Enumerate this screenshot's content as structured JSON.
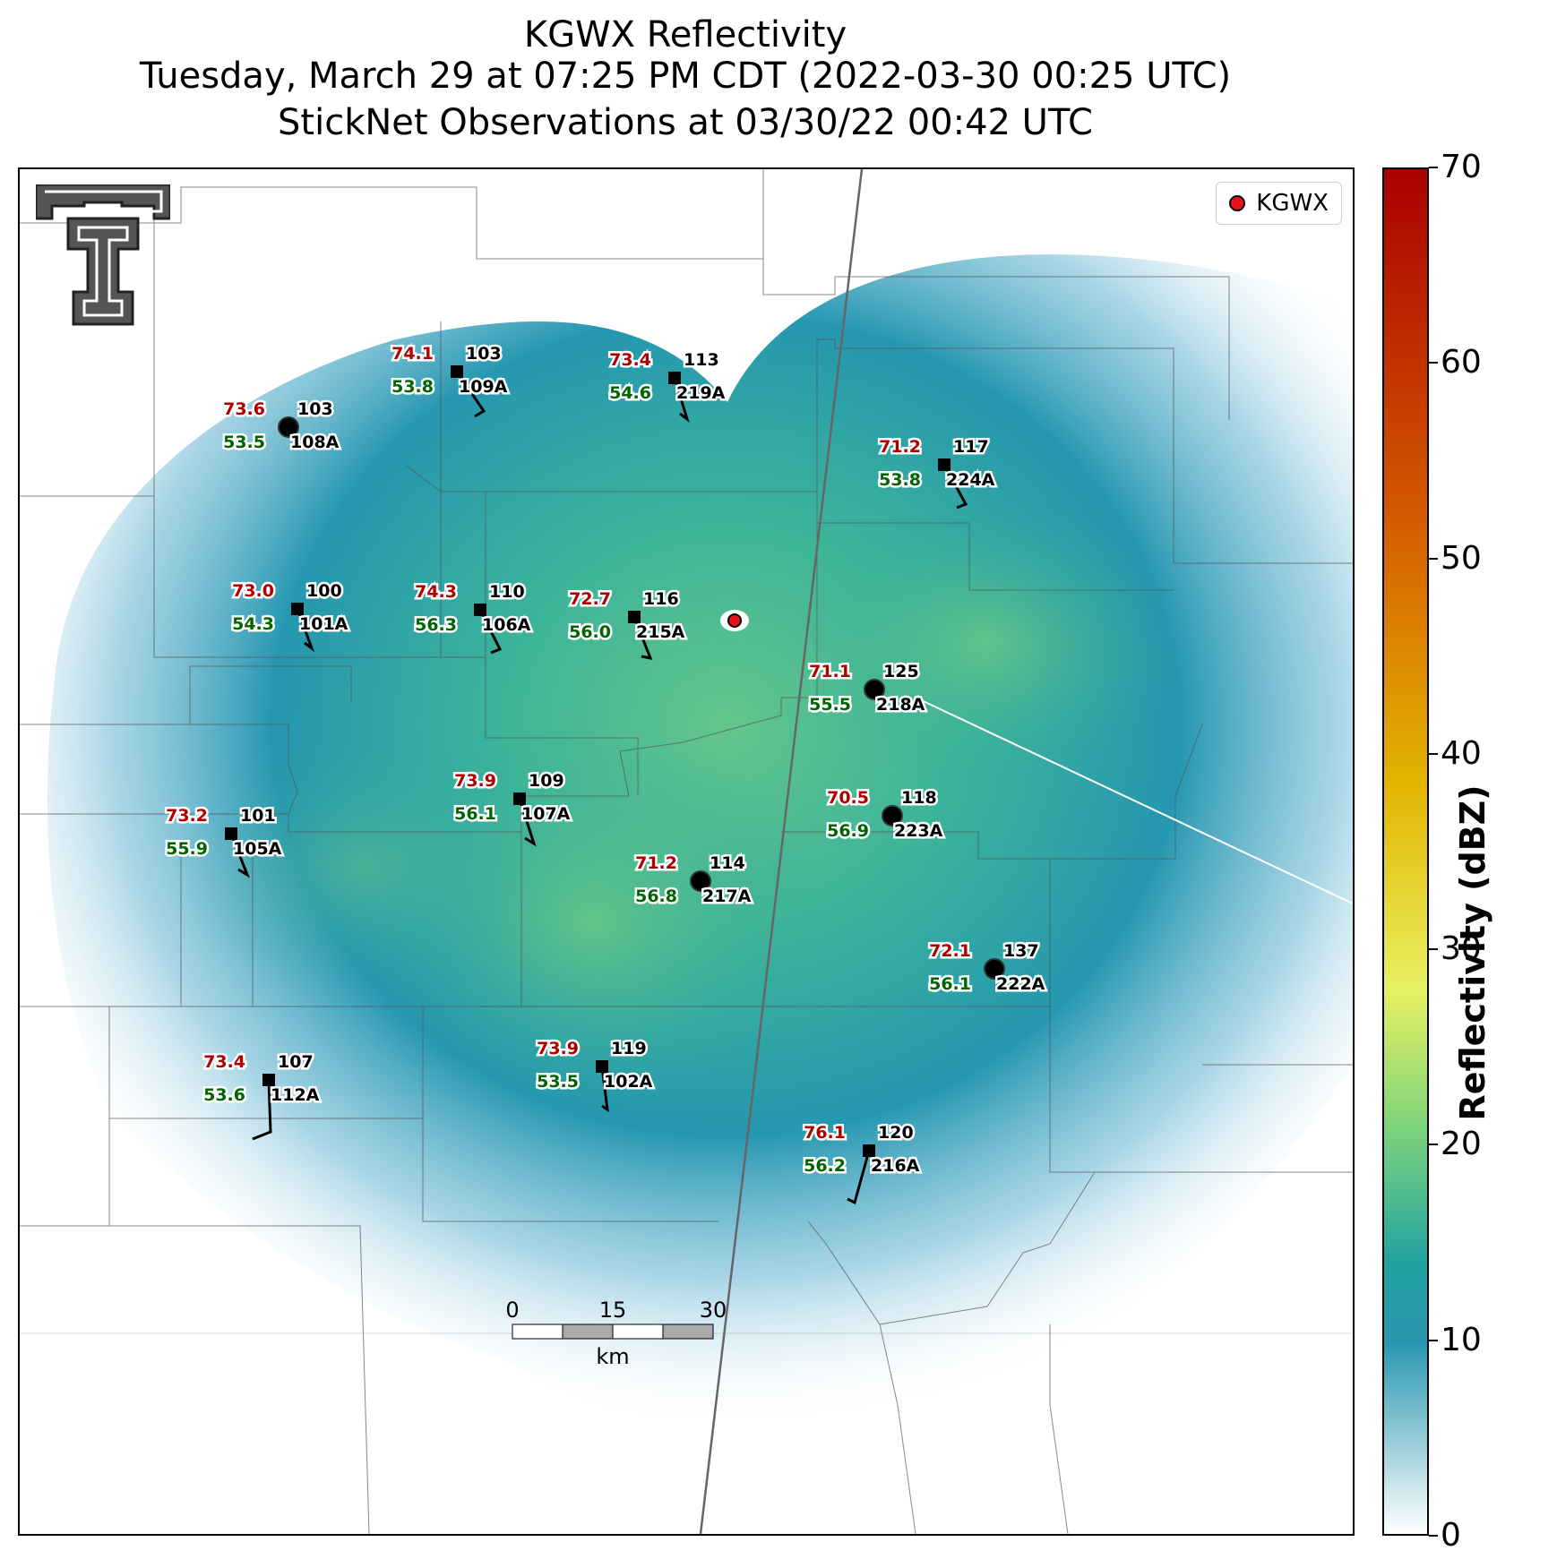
{
  "title": {
    "line1": "KGWX Reflectivity",
    "line2": "Tuesday, March 29 at 07:25 PM CDT (2022-03-30 00:25 UTC)",
    "line3": "StickNet Observations at 03/30/22 00:42 UTC"
  },
  "legend": {
    "label": "KGWX",
    "marker_color": "#e8141c"
  },
  "colorbar": {
    "label": "Reflectivity (dBZ)",
    "min": 0,
    "max": 70,
    "ticks": [
      "0",
      "10",
      "20",
      "30",
      "40",
      "50",
      "60",
      "70"
    ],
    "colors": [
      "#ffffff",
      "#2a97b0",
      "#23a3a1",
      "#7fd47b",
      "#e8f060",
      "#e2b400",
      "#d45900",
      "#aa0000"
    ]
  },
  "scalebar": {
    "labels": [
      "0",
      "15",
      "30"
    ],
    "unit": "km"
  },
  "stations": [
    {
      "temp": "74.1",
      "dew": "53.8",
      "id": "103",
      "code": "109A",
      "marker": "square"
    },
    {
      "temp": "73.4",
      "dew": "54.6",
      "id": "113",
      "code": "219A",
      "marker": "square"
    },
    {
      "temp": "73.6",
      "dew": "53.5",
      "id": "103",
      "code": "108A",
      "marker": "circle"
    },
    {
      "temp": "71.2",
      "dew": "53.8",
      "id": "117",
      "code": "224A",
      "marker": "square"
    },
    {
      "temp": "73.0",
      "dew": "54.3",
      "id": "100",
      "code": "101A",
      "marker": "square"
    },
    {
      "temp": "74.3",
      "dew": "56.3",
      "id": "110",
      "code": "106A",
      "marker": "square"
    },
    {
      "temp": "72.7",
      "dew": "56.0",
      "id": "116",
      "code": "215A",
      "marker": "square"
    },
    {
      "temp": "71.1",
      "dew": "55.5",
      "id": "125",
      "code": "218A",
      "marker": "circle"
    },
    {
      "temp": "73.9",
      "dew": "56.1",
      "id": "109",
      "code": "107A",
      "marker": "square"
    },
    {
      "temp": "70.5",
      "dew": "56.9",
      "id": "118",
      "code": "223A",
      "marker": "circle"
    },
    {
      "temp": "73.2",
      "dew": "55.9",
      "id": "101",
      "code": "105A",
      "marker": "square"
    },
    {
      "temp": "71.2",
      "dew": "56.8",
      "id": "114",
      "code": "217A",
      "marker": "circle"
    },
    {
      "temp": "72.1",
      "dew": "56.1",
      "id": "137",
      "code": "222A",
      "marker": "circle"
    },
    {
      "temp": "73.9",
      "dew": "53.5",
      "id": "119",
      "code": "102A",
      "marker": "square"
    },
    {
      "temp": "73.4",
      "dew": "53.6",
      "id": "107",
      "code": "112A",
      "marker": "square"
    },
    {
      "temp": "76.1",
      "dew": "56.2",
      "id": "120",
      "code": "216A",
      "marker": "square"
    }
  ]
}
